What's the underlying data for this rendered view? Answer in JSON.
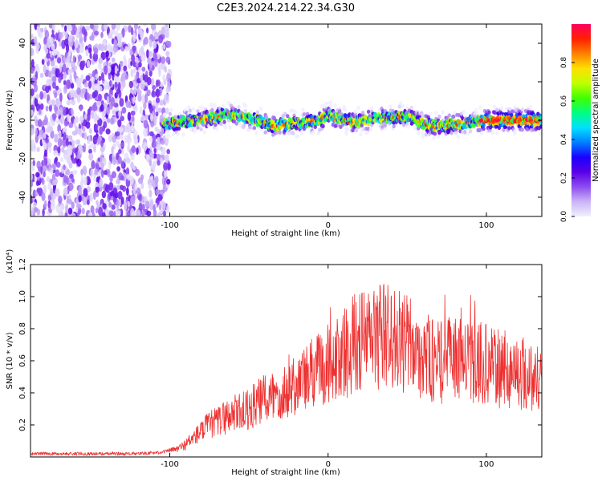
{
  "title": "C2E3.2024.214.22.34.G30",
  "colors": {
    "snr_line": "#ee3030",
    "frame": "#000000",
    "colorbar_stops": [
      "#f0f0ff",
      "#cbb4f5",
      "#8e4cf0",
      "#5a00e6",
      "#1a00ff",
      "#0080ff",
      "#00e0ff",
      "#00ff80",
      "#40ff00",
      "#c0ff00",
      "#ffe000",
      "#ff8000",
      "#ff2000",
      "#ff0060"
    ]
  },
  "chart_data": [
    {
      "type": "heatmap",
      "title": "C2E3.2024.214.22.34.G30",
      "xlabel": "Height of straight line (km)",
      "ylabel": "Frequency (Hz)",
      "xlim": [
        -188,
        135
      ],
      "ylim": [
        -50,
        50
      ],
      "xticks": [
        -100,
        0,
        100
      ],
      "yticks": [
        -40,
        -20,
        0,
        20,
        40
      ],
      "colorbar": {
        "label": "Normalized spectral amplitude",
        "range": [
          0,
          1
        ],
        "ticks": [
          "0.0",
          "0.2",
          "0.4",
          "0.6",
          "0.8"
        ]
      },
      "noise_region_x": [
        -188,
        -100
      ],
      "ridge": {
        "x": [
          -105,
          -95,
          -85,
          -75,
          -65,
          -55,
          -45,
          -35,
          -25,
          -15,
          -5,
          0,
          5,
          15,
          25,
          30,
          35,
          45,
          55,
          60,
          70,
          80,
          90,
          100,
          110,
          120,
          135
        ],
        "y": [
          -2,
          -1,
          0,
          1,
          3,
          2,
          0,
          -3,
          -2,
          -1,
          0,
          3,
          1,
          -1,
          0,
          2,
          1,
          2,
          1,
          -2,
          -3,
          -2,
          -1,
          0,
          0,
          0,
          0
        ]
      }
    },
    {
      "type": "line",
      "xlabel": "Height of straight line (km)",
      "ylabel": "SNR (10 * v/v)",
      "multiplier_label": "(x10⁴)",
      "xlim": [
        -188,
        135
      ],
      "ylim": [
        0,
        1.2
      ],
      "xticks": [
        -100,
        0,
        100
      ],
      "yticks": [
        "0.2",
        "0.4",
        "0.6",
        "0.8",
        "1.0",
        "1.2"
      ],
      "series": [
        {
          "x": [
            -188,
            -160,
            -140,
            -120,
            -105,
            -95,
            -90,
            -85,
            -80,
            -75,
            -70,
            -65,
            -60,
            -55,
            -50,
            -45,
            -40,
            -35,
            -30,
            -25,
            -20,
            -15,
            -10,
            -5,
            0,
            5,
            10,
            15,
            20,
            25,
            30,
            35,
            40,
            45,
            50,
            55,
            60,
            65,
            70,
            75,
            80,
            85,
            90,
            95,
            100,
            105,
            110,
            115,
            120,
            125,
            130,
            135
          ],
          "values": [
            0.02,
            0.02,
            0.02,
            0.02,
            0.03,
            0.05,
            0.08,
            0.12,
            0.16,
            0.2,
            0.22,
            0.25,
            0.27,
            0.28,
            0.3,
            0.33,
            0.36,
            0.38,
            0.4,
            0.44,
            0.46,
            0.48,
            0.52,
            0.55,
            0.58,
            0.6,
            0.64,
            0.7,
            0.72,
            0.74,
            0.75,
            0.76,
            0.75,
            0.72,
            0.7,
            0.68,
            0.65,
            0.6,
            0.58,
            0.6,
            0.62,
            0.6,
            0.58,
            0.6,
            0.58,
            0.55,
            0.55,
            0.54,
            0.53,
            0.52,
            0.5,
            0.48
          ]
        }
      ]
    }
  ]
}
